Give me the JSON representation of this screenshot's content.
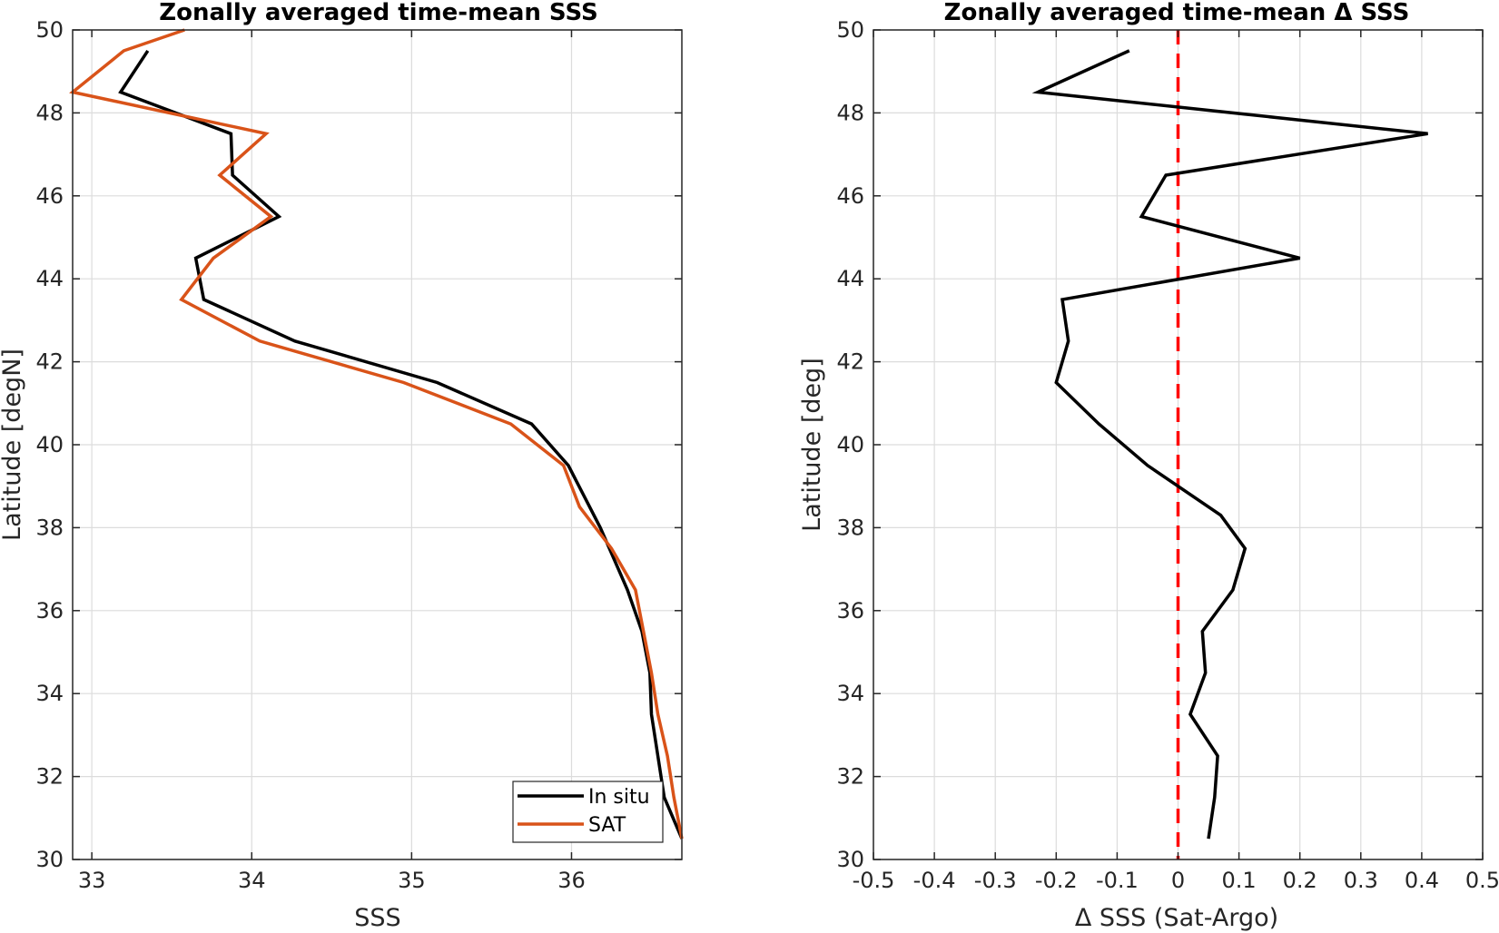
{
  "chart_data": [
    {
      "type": "line",
      "title": "Zonally averaged time-mean SSS",
      "xlabel": "SSS",
      "ylabel": "Latitude [degN]",
      "xlim": [
        32.88,
        36.69
      ],
      "ylim": [
        30,
        50
      ],
      "xticks": [
        33,
        34,
        35,
        36
      ],
      "yticks": [
        30,
        32,
        34,
        36,
        38,
        40,
        42,
        44,
        46,
        48,
        50
      ],
      "grid": true,
      "legend_position": "bottom-right",
      "series": [
        {
          "name": "In situ",
          "color": "#000000",
          "points": [
            [
              36.69,
              30.5
            ],
            [
              36.58,
              31.5
            ],
            [
              36.5,
              33.5
            ],
            [
              36.49,
              34.5
            ],
            [
              36.44,
              35.5
            ],
            [
              36.35,
              36.5
            ],
            [
              36.18,
              38.0
            ],
            [
              35.98,
              39.5
            ],
            [
              35.75,
              40.5
            ],
            [
              35.16,
              41.5
            ],
            [
              34.27,
              42.5
            ],
            [
              33.7,
              43.5
            ],
            [
              33.65,
              44.5
            ],
            [
              34.17,
              45.5
            ],
            [
              33.88,
              46.5
            ],
            [
              33.87,
              47.5
            ],
            [
              33.18,
              48.5
            ],
            [
              33.35,
              49.5
            ]
          ]
        },
        {
          "name": "SAT",
          "color": "#D95319",
          "points": [
            [
              36.69,
              30.5
            ],
            [
              36.64,
              31.5
            ],
            [
              36.6,
              32.5
            ],
            [
              36.54,
              33.5
            ],
            [
              36.5,
              34.5
            ],
            [
              36.45,
              35.5
            ],
            [
              36.4,
              36.5
            ],
            [
              36.25,
              37.5
            ],
            [
              36.05,
              38.5
            ],
            [
              35.95,
              39.5
            ],
            [
              35.62,
              40.5
            ],
            [
              34.95,
              41.5
            ],
            [
              34.05,
              42.5
            ],
            [
              33.56,
              43.5
            ],
            [
              33.76,
              44.5
            ],
            [
              34.12,
              45.5
            ],
            [
              33.8,
              46.5
            ],
            [
              34.09,
              47.5
            ],
            [
              32.88,
              48.5
            ],
            [
              33.2,
              49.5
            ],
            [
              33.58,
              50.0
            ]
          ]
        }
      ]
    },
    {
      "type": "line",
      "title": "Zonally averaged time-mean Δ SSS",
      "xlabel": "Δ SSS (Sat-Argo)",
      "ylabel": "Latitude [deg]",
      "xlim": [
        -0.5,
        0.5
      ],
      "ylim": [
        30,
        50
      ],
      "xticks": [
        -0.5,
        -0.4,
        -0.3,
        -0.2,
        -0.1,
        0,
        0.1,
        0.2,
        0.3,
        0.4,
        0.5
      ],
      "yticks": [
        30,
        32,
        34,
        36,
        38,
        40,
        42,
        44,
        46,
        48,
        50
      ],
      "grid": true,
      "reference_line": {
        "x": 0,
        "color": "#FF0000",
        "style": "dashed"
      },
      "series": [
        {
          "color": "#000000",
          "points": [
            [
              0.05,
              30.5
            ],
            [
              0.06,
              31.5
            ],
            [
              0.065,
              32.5
            ],
            [
              0.02,
              33.5
            ],
            [
              0.045,
              34.5
            ],
            [
              0.04,
              35.5
            ],
            [
              0.09,
              36.5
            ],
            [
              0.11,
              37.5
            ],
            [
              0.07,
              38.3
            ],
            [
              -0.05,
              39.5
            ],
            [
              -0.13,
              40.5
            ],
            [
              -0.2,
              41.5
            ],
            [
              -0.18,
              42.5
            ],
            [
              -0.19,
              43.5
            ],
            [
              0.2,
              44.5
            ],
            [
              -0.06,
              45.5
            ],
            [
              -0.02,
              46.5
            ],
            [
              0.41,
              47.5
            ],
            [
              -0.23,
              48.5
            ],
            [
              -0.08,
              49.5
            ]
          ]
        }
      ]
    }
  ]
}
